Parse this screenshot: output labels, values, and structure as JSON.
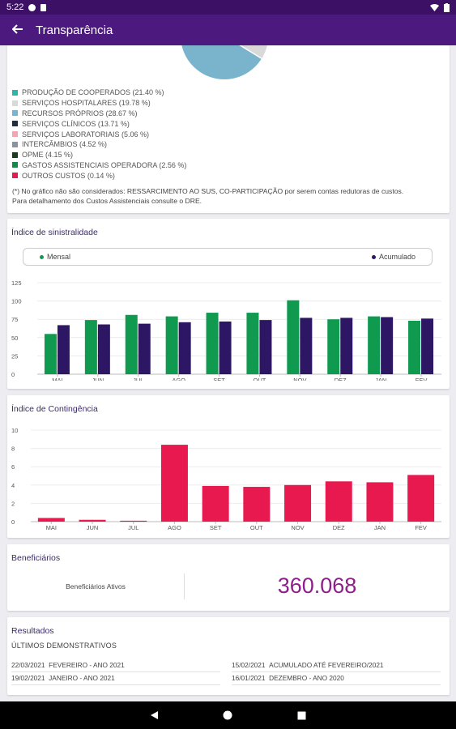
{
  "status_bar": {
    "time": "5:22"
  },
  "app_bar": {
    "back_icon": "arrow-back-icon",
    "title": "Transparência"
  },
  "cost_breakdown": {
    "legend": [
      {
        "label": "PRODUÇÃO DE COOPERADOS  (21.40 %)",
        "color": "#2ab5ad"
      },
      {
        "label": "SERVIÇOS HOSPITALARES  (19.78 %)",
        "color": "#d9d9d9"
      },
      {
        "label": "RECURSOS PRÓPRIOS  (28.67 %)",
        "color": "#79b3cc"
      },
      {
        "label": "SERVIÇOS CLÍNICOS  (13.71 %)",
        "color": "#1f2f3d"
      },
      {
        "label": "SERVIÇOS LABORATORIAIS  (5.06 %)",
        "color": "#f3a6b0"
      },
      {
        "label": "INTERCÂMBIOS  (4.52 %)",
        "color": "#8a94a0"
      },
      {
        "label": "OPME  (4.15 %)",
        "color": "#1b3b1f"
      },
      {
        "label": "GASTOS ASSISTENCIAIS OPERADORA  (2.56 %)",
        "color": "#13894a"
      },
      {
        "label": "OUTROS CUSTOS  (0.14 %)",
        "color": "#e8194f"
      }
    ],
    "note_line1": "(*) No gráfico não são considerados: RESSARCIMENTO AO SUS, CO-PARTICIPAÇÃO por serem contas redutoras de custos.",
    "note_line2": "Para detalhamento dos Custos Assistenciais consulte o DRE."
  },
  "chart_data": [
    {
      "type": "bar",
      "title": "Índice de sinistralidade",
      "categories": [
        "MAI",
        "JUN",
        "JUL",
        "AGO",
        "SET",
        "OUT",
        "NOV",
        "DEZ",
        "JAN",
        "FEV"
      ],
      "series": [
        {
          "name": "Mensal",
          "color": "#0f9a4f",
          "values": [
            55,
            74,
            81,
            79,
            84,
            84,
            101,
            75,
            79,
            73
          ]
        },
        {
          "name": "Acumulado",
          "color": "#2d1663",
          "values": [
            67,
            68,
            69,
            71,
            72,
            74,
            77,
            77,
            78,
            76
          ]
        }
      ],
      "yticks": [
        0,
        25,
        50,
        75,
        100,
        125
      ],
      "ylim": [
        0,
        125
      ],
      "grid": true,
      "legend_position": "top"
    },
    {
      "type": "bar",
      "title": "Índice de Contingência",
      "categories": [
        "MAI",
        "JUN",
        "JUL",
        "AGO",
        "SET",
        "OUT",
        "NOV",
        "DEZ",
        "JAN",
        "FEV"
      ],
      "series": [
        {
          "color": "#e8194f",
          "values": [
            0.4,
            0.2,
            0.1,
            8.4,
            3.9,
            3.8,
            4.0,
            4.4,
            4.3,
            5.1
          ]
        }
      ],
      "yticks": [
        0,
        2,
        4,
        6,
        8,
        10
      ],
      "ylim": [
        0,
        10
      ],
      "grid": true
    }
  ],
  "beneficiarios": {
    "title": "Beneficiários",
    "label": "Beneficiários Ativos",
    "value": "360.068"
  },
  "resultados": {
    "title": "Resultados",
    "subtitle": "ÚLTIMOS DEMONSTRATIVOS",
    "items": [
      {
        "date": "22/03/2021",
        "desc": "FEVEREIRO - ANO 2021"
      },
      {
        "date": "15/02/2021",
        "desc": "ACUMULADO ATÉ FEVEREIRO/2021"
      },
      {
        "date": "19/02/2021",
        "desc": "JANEIRO - ANO 2021"
      },
      {
        "date": "16/01/2021",
        "desc": "DEZEMBRO - ANO 2020"
      }
    ]
  },
  "nav_bar": {
    "back_icon": "nav-back-icon",
    "home_icon": "nav-home-icon",
    "recents_icon": "nav-recents-icon"
  }
}
